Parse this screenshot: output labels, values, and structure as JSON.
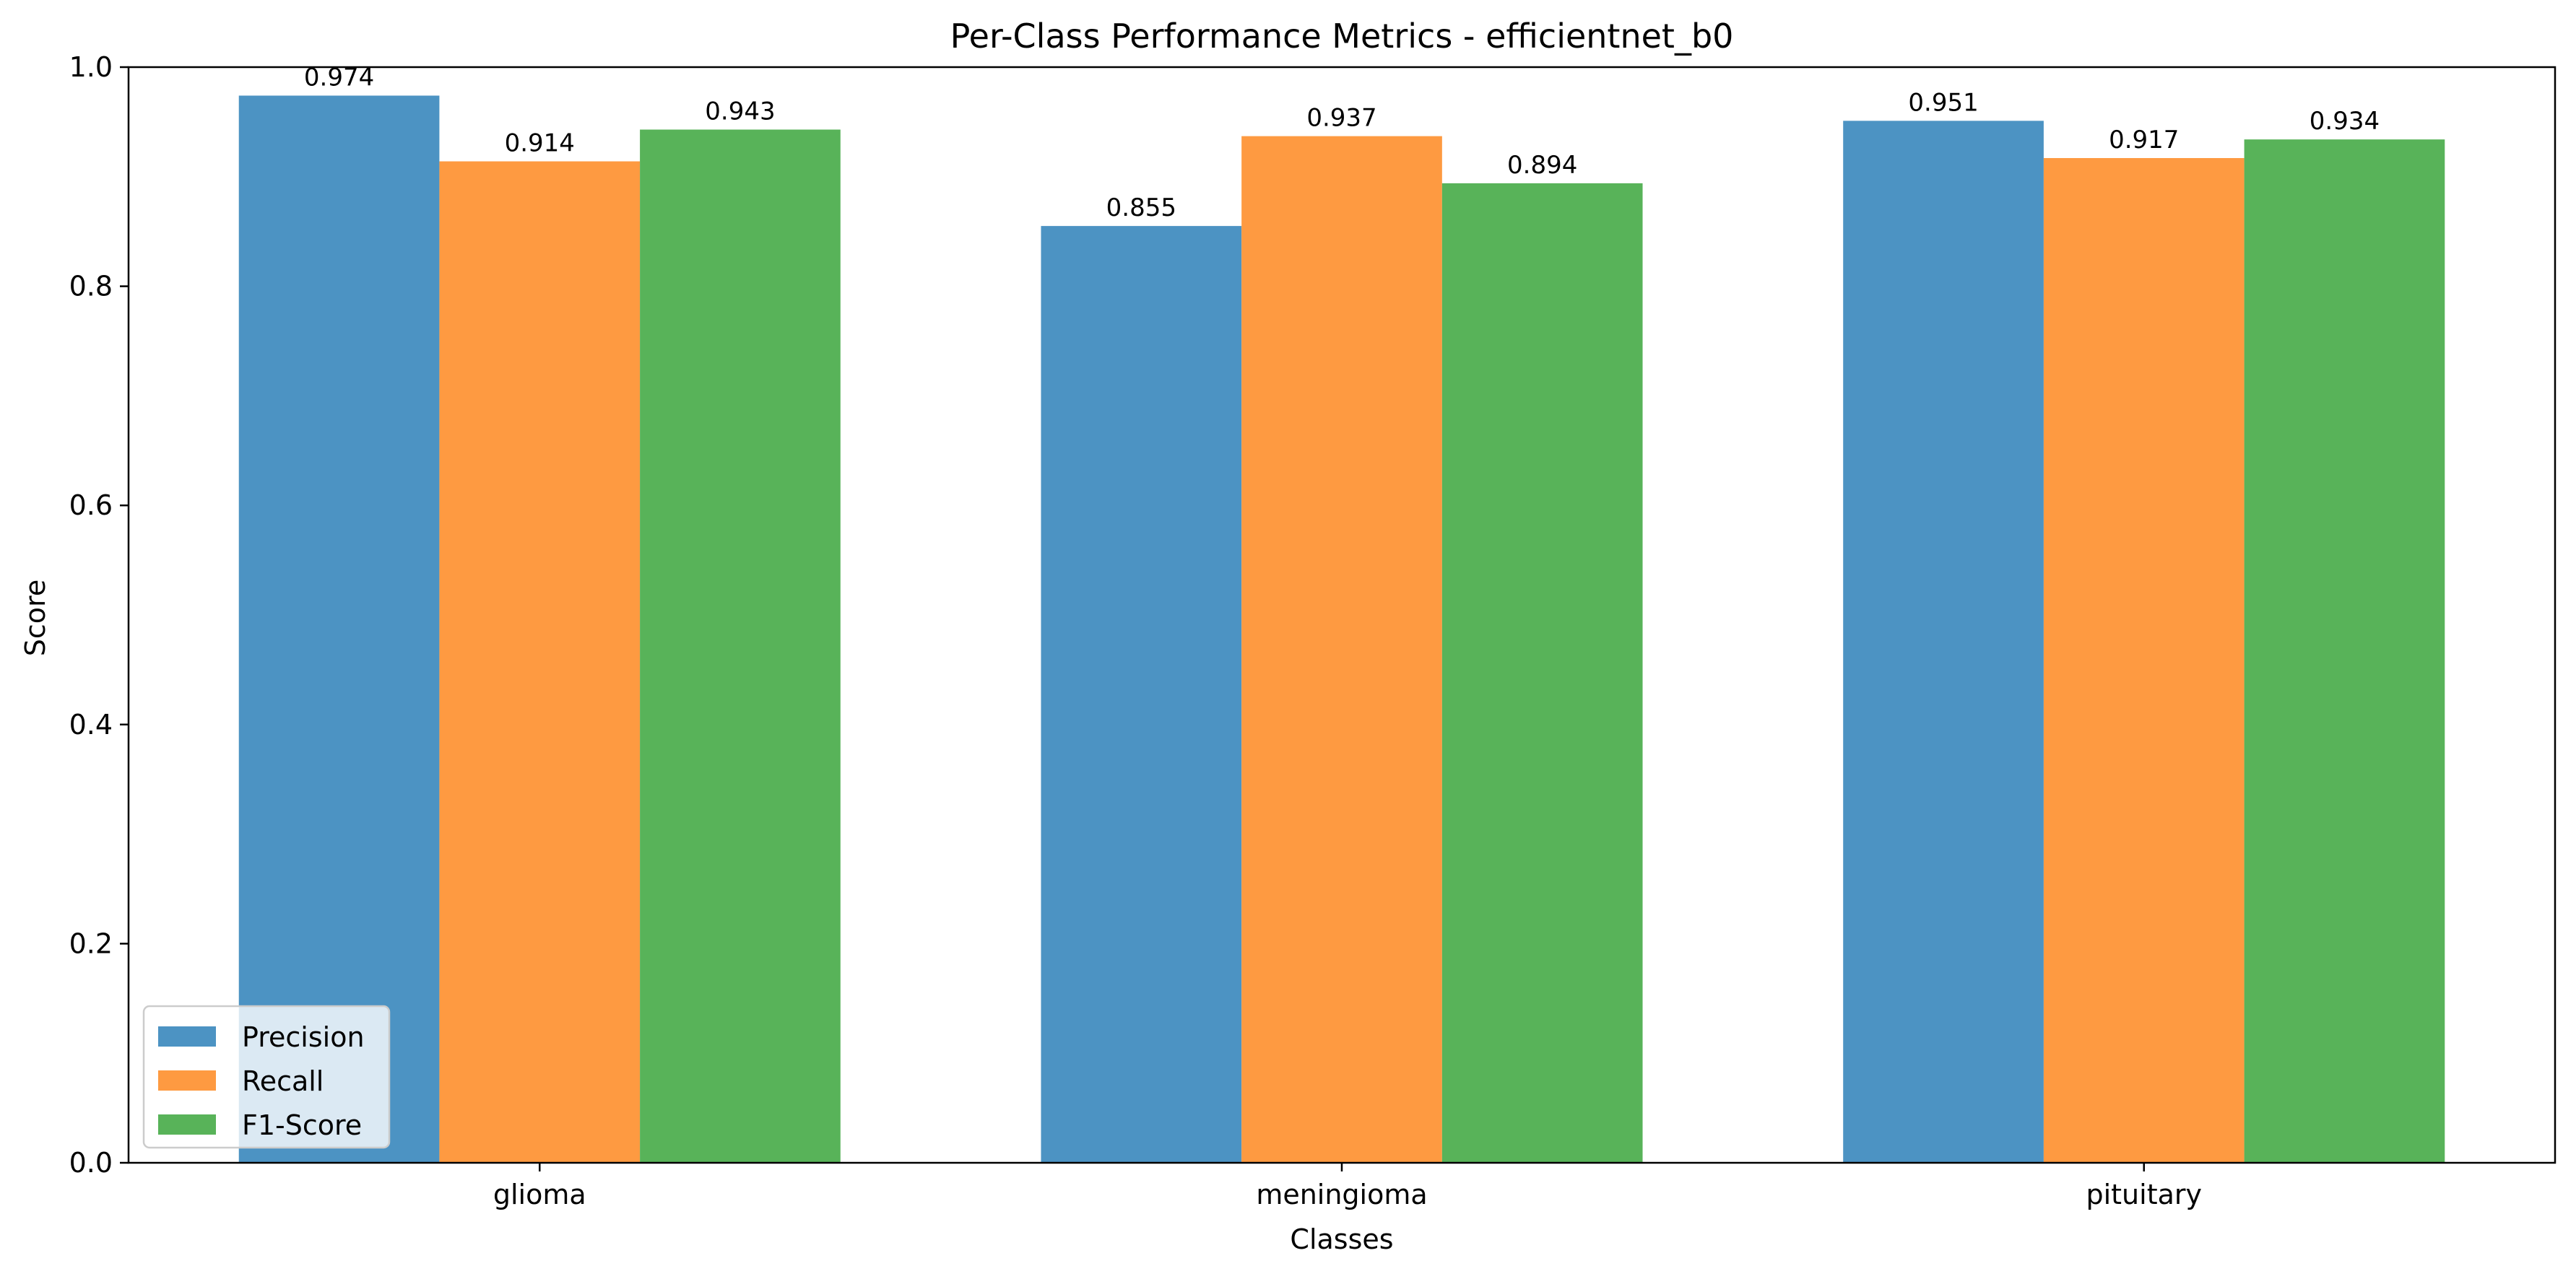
{
  "chart_data": {
    "type": "bar",
    "title": "Per-Class Performance Metrics - efficientnet_b0",
    "xlabel": "Classes",
    "ylabel": "Score",
    "categories": [
      "glioma",
      "meningioma",
      "pituitary"
    ],
    "series": [
      {
        "name": "Precision",
        "values": [
          0.974,
          0.855,
          0.951
        ],
        "labels": [
          "0.974",
          "0.855",
          "0.951"
        ],
        "color": "#4c93c3"
      },
      {
        "name": "Recall",
        "values": [
          0.914,
          0.937,
          0.917
        ],
        "labels": [
          "0.914",
          "0.937",
          "0.917"
        ],
        "color": "#fe9a41"
      },
      {
        "name": "F1-Score",
        "values": [
          0.943,
          0.894,
          0.934
        ],
        "labels": [
          "0.943",
          "0.894",
          "0.934"
        ],
        "color": "#58b359"
      }
    ],
    "ylim": [
      0,
      1.0
    ],
    "yticks": [
      {
        "value": 0.0,
        "label": "0.0"
      },
      {
        "value": 0.2,
        "label": "0.2"
      },
      {
        "value": 0.4,
        "label": "0.4"
      },
      {
        "value": 0.6,
        "label": "0.6"
      },
      {
        "value": 0.8,
        "label": "0.8"
      },
      {
        "value": 1.0,
        "label": "1.0"
      }
    ],
    "grid": false,
    "legend_position": "lower-left"
  }
}
